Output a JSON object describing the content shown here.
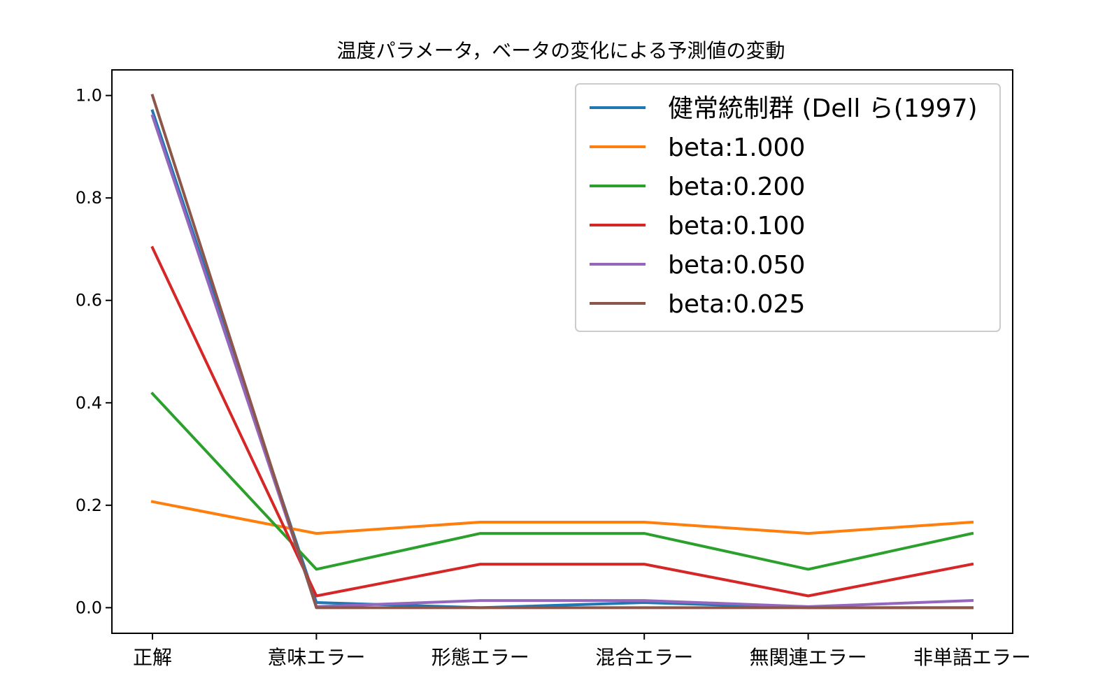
{
  "chart_data": {
    "type": "line",
    "title": "温度パラメータ，ベータの変化による予測値の変動",
    "xlabel": "",
    "ylabel": "",
    "categories": [
      "正解",
      "意味エラー",
      "形態エラー",
      "混合エラー",
      "無関連エラー",
      "非単語エラー"
    ],
    "ylim": [
      -0.05,
      1.05
    ],
    "yticks": [
      0.0,
      0.2,
      0.4,
      0.6,
      0.8,
      1.0
    ],
    "ytick_labels": [
      "0.0",
      "0.2",
      "0.4",
      "0.6",
      "0.8",
      "1.0"
    ],
    "grid": false,
    "legend_position": "top-right",
    "series": [
      {
        "name": "健常統制群 (Dell ら(1997)",
        "color": "#1f77b4",
        "values": [
          0.97,
          0.01,
          0.0,
          0.01,
          0.0,
          0.0
        ]
      },
      {
        "name": "beta:1.000",
        "color": "#ff7f0e",
        "values": [
          0.207,
          0.145,
          0.167,
          0.167,
          0.145,
          0.167
        ]
      },
      {
        "name": "beta:0.200",
        "color": "#2ca02c",
        "values": [
          0.418,
          0.075,
          0.145,
          0.145,
          0.075,
          0.145
        ]
      },
      {
        "name": "beta:0.100",
        "color": "#d62728",
        "values": [
          0.703,
          0.023,
          0.085,
          0.085,
          0.023,
          0.085
        ]
      },
      {
        "name": "beta:0.050",
        "color": "#9467bd",
        "values": [
          0.96,
          0.002,
          0.014,
          0.014,
          0.002,
          0.014
        ]
      },
      {
        "name": "beta:0.025",
        "color": "#8c564b",
        "values": [
          1.0,
          0.0,
          0.0,
          0.0,
          0.0,
          0.0
        ]
      }
    ]
  }
}
